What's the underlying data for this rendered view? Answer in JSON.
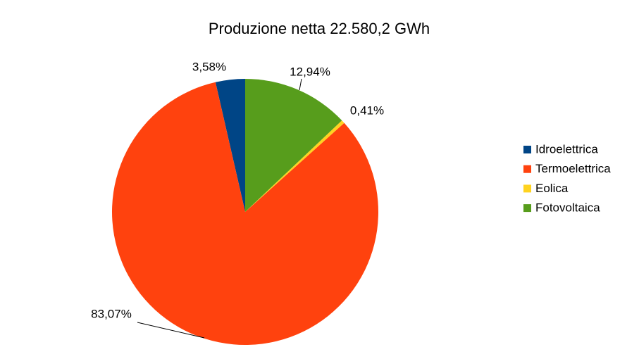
{
  "chart_data": {
    "type": "pie",
    "title": "Produzione netta 22.580,2 GWh",
    "categories": [
      "Idroelettrica",
      "Termoelettrica",
      "Eolica",
      "Fotovoltaica"
    ],
    "values": [
      3.58,
      83.07,
      0.41,
      12.94
    ],
    "value_labels": [
      "3,58%",
      "83,07%",
      "0,41%",
      "12,94%"
    ],
    "colors": [
      "#004586",
      "#ff420e",
      "#ffd320",
      "#579d1c"
    ],
    "direction": "counterclockwise",
    "legend": "right"
  }
}
